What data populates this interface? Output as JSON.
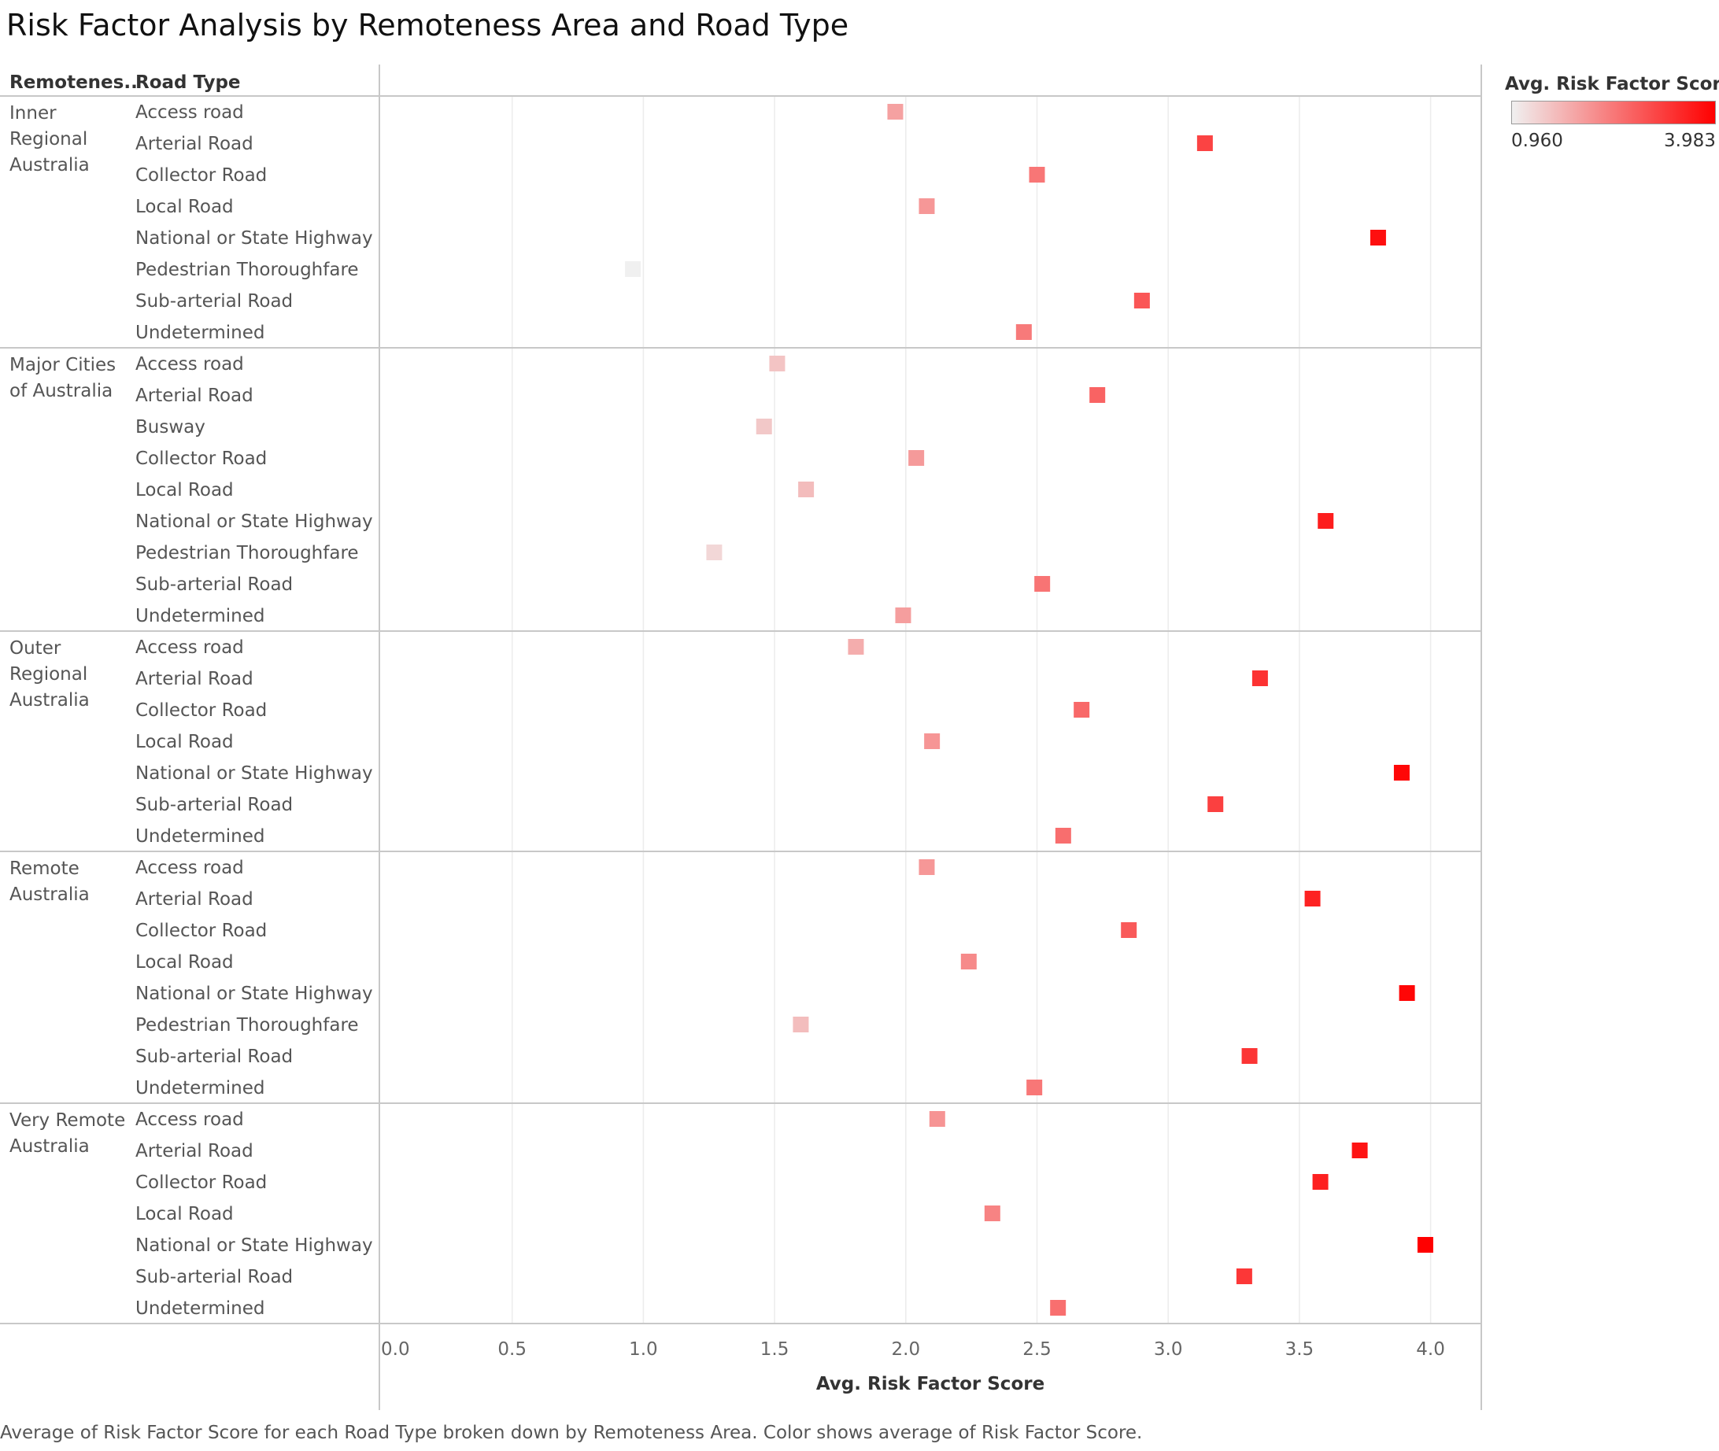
{
  "title": "Risk Factor Analysis by Remoteness Area and Road Type",
  "headers": {
    "remoteness": "Remotenes..",
    "road_type": "Road Type"
  },
  "caption": "Average of Risk Factor Score for each Road Type broken down by Remoteness Area.  Color shows average of Risk Factor Score.",
  "legend": {
    "title": "Avg. Risk Factor Score",
    "min_label": "0.960",
    "max_label": "3.983",
    "color_low": "#f0f0f0",
    "color_high": "#ff0000"
  },
  "chart_data": {
    "type": "scatter",
    "xlabel": "Avg. Risk Factor Score",
    "xlim": [
      0,
      4.2
    ],
    "x_ticks": [
      "0.0",
      "0.5",
      "1.0",
      "1.5",
      "2.0",
      "2.5",
      "3.0",
      "3.5",
      "4.0"
    ],
    "color_range": [
      0.96,
      3.983
    ],
    "groups": [
      {
        "area": "Inner Regional Australia",
        "area_lines": [
          "Inner",
          "Regional",
          "Australia"
        ],
        "rows": [
          {
            "road": "Access road",
            "value": 1.96
          },
          {
            "road": "Arterial Road",
            "value": 3.14
          },
          {
            "road": "Collector Road",
            "value": 2.5
          },
          {
            "road": "Local Road",
            "value": 2.08
          },
          {
            "road": "National or State Highway",
            "value": 3.8
          },
          {
            "road": "Pedestrian Thoroughfare",
            "value": 0.96
          },
          {
            "road": "Sub-arterial Road",
            "value": 2.9
          },
          {
            "road": "Undetermined",
            "value": 2.45
          }
        ]
      },
      {
        "area": "Major Cities of Australia",
        "area_lines": [
          "Major Cities",
          "of Australia"
        ],
        "rows": [
          {
            "road": "Access road",
            "value": 1.51
          },
          {
            "road": "Arterial Road",
            "value": 2.73
          },
          {
            "road": "Busway",
            "value": 1.46
          },
          {
            "road": "Collector Road",
            "value": 2.04
          },
          {
            "road": "Local Road",
            "value": 1.62
          },
          {
            "road": "National or State Highway",
            "value": 3.6
          },
          {
            "road": "Pedestrian Thoroughfare",
            "value": 1.27
          },
          {
            "road": "Sub-arterial Road",
            "value": 2.52
          },
          {
            "road": "Undetermined",
            "value": 1.99
          }
        ]
      },
      {
        "area": "Outer Regional Australia",
        "area_lines": [
          "Outer",
          "Regional",
          "Australia"
        ],
        "rows": [
          {
            "road": "Access road",
            "value": 1.81
          },
          {
            "road": "Arterial Road",
            "value": 3.35
          },
          {
            "road": "Collector Road",
            "value": 2.67
          },
          {
            "road": "Local Road",
            "value": 2.1
          },
          {
            "road": "National or State Highway",
            "value": 3.89
          },
          {
            "road": "Sub-arterial Road",
            "value": 3.18
          },
          {
            "road": "Undetermined",
            "value": 2.6
          }
        ]
      },
      {
        "area": "Remote Australia",
        "area_lines": [
          "Remote",
          "Australia"
        ],
        "rows": [
          {
            "road": "Access road",
            "value": 2.08
          },
          {
            "road": "Arterial Road",
            "value": 3.55
          },
          {
            "road": "Collector Road",
            "value": 2.85
          },
          {
            "road": "Local Road",
            "value": 2.24
          },
          {
            "road": "National or State Highway",
            "value": 3.91
          },
          {
            "road": "Pedestrian Thoroughfare",
            "value": 1.6
          },
          {
            "road": "Sub-arterial Road",
            "value": 3.31
          },
          {
            "road": "Undetermined",
            "value": 2.49
          }
        ]
      },
      {
        "area": "Very Remote Australia",
        "area_lines": [
          "Very Remote",
          "Australia"
        ],
        "rows": [
          {
            "road": "Access road",
            "value": 2.12
          },
          {
            "road": "Arterial Road",
            "value": 3.73
          },
          {
            "road": "Collector Road",
            "value": 3.58
          },
          {
            "road": "Local Road",
            "value": 2.33
          },
          {
            "road": "National or State Highway",
            "value": 3.98
          },
          {
            "road": "Sub-arterial Road",
            "value": 3.29
          },
          {
            "road": "Undetermined",
            "value": 2.58
          }
        ]
      }
    ]
  }
}
